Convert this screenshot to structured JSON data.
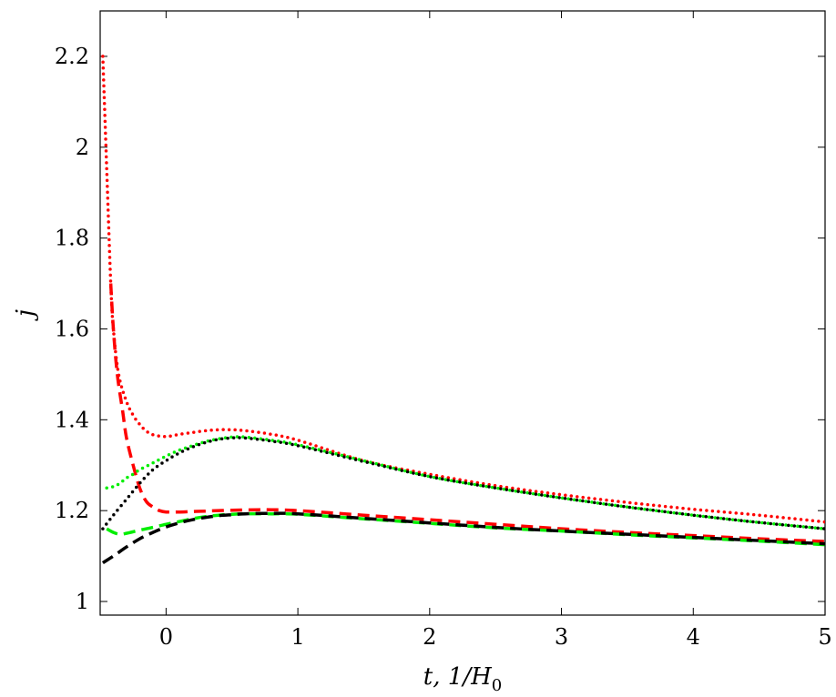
{
  "chart_data": {
    "type": "line",
    "xlabel": "t, 1/H",
    "xlabel_sub": "0",
    "ylabel": "j",
    "xlim": [
      -0.5,
      5
    ],
    "ylim": [
      0.97,
      2.3
    ],
    "xticks": [
      0,
      1,
      2,
      3,
      4,
      5
    ],
    "yticks": [
      1,
      1.2,
      1.4,
      1.6,
      1.8,
      2,
      2.2
    ],
    "grid": false,
    "series": [
      {
        "color": "#ff0000",
        "style": "dotted",
        "x": [
          -0.48,
          -0.45,
          -0.42,
          -0.4,
          -0.36,
          -0.3,
          -0.25,
          -0.2,
          -0.15,
          -0.1,
          -0.05,
          0,
          0.05,
          0.1,
          0.2,
          0.3,
          0.4,
          0.5,
          0.6,
          0.8,
          1,
          1.5,
          2,
          2.5,
          3,
          3.5,
          4,
          4.5,
          5
        ],
        "y": [
          2.2,
          1.95,
          1.7,
          1.6,
          1.5,
          1.44,
          1.41,
          1.39,
          1.375,
          1.367,
          1.364,
          1.363,
          1.365,
          1.368,
          1.372,
          1.376,
          1.378,
          1.378,
          1.376,
          1.368,
          1.355,
          1.31,
          1.28,
          1.255,
          1.235,
          1.218,
          1.203,
          1.19,
          1.175
        ]
      },
      {
        "color": "#ff0000",
        "style": "dashed",
        "x": [
          -0.42,
          -0.4,
          -0.37,
          -0.33,
          -0.3,
          -0.25,
          -0.2,
          -0.15,
          -0.1,
          -0.05,
          0,
          0.1,
          0.2,
          0.3,
          0.5,
          0.7,
          0.8,
          1,
          1.5,
          2,
          2.5,
          3,
          3.5,
          4,
          4.5,
          5
        ],
        "y": [
          1.7,
          1.6,
          1.5,
          1.42,
          1.36,
          1.3,
          1.25,
          1.22,
          1.208,
          1.2,
          1.197,
          1.197,
          1.198,
          1.199,
          1.201,
          1.202,
          1.202,
          1.2,
          1.19,
          1.18,
          1.17,
          1.16,
          1.152,
          1.145,
          1.138,
          1.132
        ]
      },
      {
        "color": "#00ee00",
        "style": "dotted",
        "x": [
          -0.45,
          -0.4,
          -0.35,
          -0.3,
          -0.25,
          -0.2,
          -0.1,
          0,
          0.1,
          0.2,
          0.3,
          0.4,
          0.5,
          0.6,
          0.8,
          1,
          1.5,
          2,
          2.5,
          3,
          3.5,
          4,
          4.5,
          5
        ],
        "y": [
          1.25,
          1.253,
          1.26,
          1.272,
          1.28,
          1.29,
          1.305,
          1.32,
          1.333,
          1.343,
          1.352,
          1.358,
          1.362,
          1.362,
          1.355,
          1.345,
          1.31,
          1.275,
          1.25,
          1.228,
          1.208,
          1.19,
          1.174,
          1.16
        ]
      },
      {
        "color": "#000000",
        "style": "dotted",
        "x": [
          -0.48,
          -0.4,
          -0.3,
          -0.2,
          -0.1,
          0,
          0.1,
          0.2,
          0.3,
          0.4,
          0.5,
          0.6,
          0.8,
          1,
          1.5,
          2,
          2.5,
          3,
          3.5,
          4,
          4.5,
          5
        ],
        "y": [
          1.16,
          1.19,
          1.225,
          1.26,
          1.29,
          1.31,
          1.327,
          1.34,
          1.35,
          1.357,
          1.36,
          1.36,
          1.353,
          1.343,
          1.308,
          1.275,
          1.25,
          1.228,
          1.208,
          1.19,
          1.174,
          1.16
        ]
      },
      {
        "color": "#00ee00",
        "style": "dashed",
        "x": [
          -0.45,
          -0.4,
          -0.35,
          -0.3,
          -0.2,
          -0.1,
          0,
          0.1,
          0.2,
          0.3,
          0.4,
          0.5,
          0.6,
          0.8,
          1,
          1.5,
          2,
          2.5,
          3,
          3.5,
          4,
          4.5,
          5
        ],
        "y": [
          1.16,
          1.152,
          1.148,
          1.15,
          1.157,
          1.163,
          1.17,
          1.176,
          1.182,
          1.187,
          1.19,
          1.192,
          1.193,
          1.193,
          1.192,
          1.182,
          1.172,
          1.162,
          1.155,
          1.147,
          1.14,
          1.133,
          1.125
        ]
      },
      {
        "color": "#000000",
        "style": "dashed",
        "x": [
          -0.48,
          -0.4,
          -0.3,
          -0.2,
          -0.1,
          0,
          0.1,
          0.2,
          0.3,
          0.4,
          0.5,
          0.6,
          0.8,
          1,
          1.5,
          2,
          2.5,
          3,
          3.5,
          4,
          4.5,
          5
        ],
        "y": [
          1.085,
          1.1,
          1.12,
          1.138,
          1.152,
          1.164,
          1.173,
          1.18,
          1.185,
          1.189,
          1.191,
          1.193,
          1.194,
          1.193,
          1.183,
          1.173,
          1.163,
          1.155,
          1.148,
          1.141,
          1.134,
          1.127
        ]
      }
    ]
  }
}
